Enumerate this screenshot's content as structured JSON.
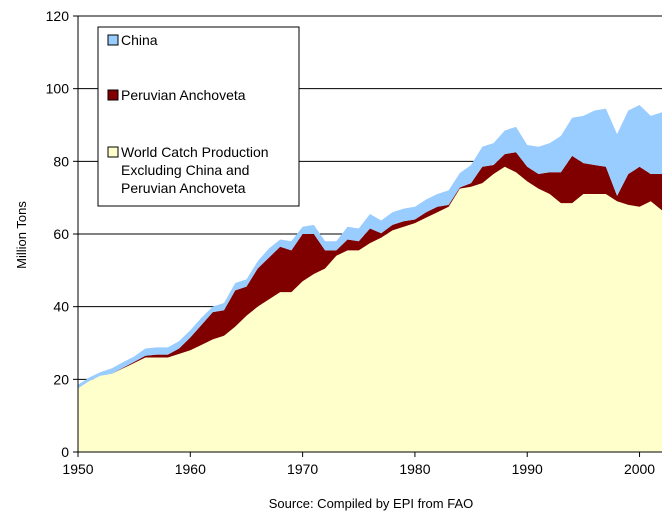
{
  "chart_data": {
    "type": "area",
    "stacked": true,
    "ylabel": "Million Tons",
    "xlabel": "Source: Compiled by EPI from FAO",
    "xlim": [
      1950,
      2002
    ],
    "ylim": [
      0,
      120
    ],
    "xticks": [
      1950,
      1960,
      1970,
      1980,
      1990,
      2000
    ],
    "yticks": [
      0,
      20,
      40,
      60,
      80,
      100,
      120
    ],
    "grid": "horizontal",
    "legend_position": "top-left",
    "x": [
      1950,
      1951,
      1952,
      1953,
      1954,
      1955,
      1956,
      1957,
      1958,
      1959,
      1960,
      1961,
      1962,
      1963,
      1964,
      1965,
      1966,
      1967,
      1968,
      1969,
      1970,
      1971,
      1972,
      1973,
      1974,
      1975,
      1976,
      1977,
      1978,
      1979,
      1980,
      1981,
      1982,
      1983,
      1984,
      1985,
      1986,
      1987,
      1988,
      1989,
      1990,
      1991,
      1992,
      1993,
      1994,
      1995,
      1996,
      1997,
      1998,
      1999,
      2000,
      2001,
      2002
    ],
    "series": [
      {
        "name": "World Catch Production Excluding China and Peruvian Anchoveta",
        "color": "#ffffcc",
        "values": [
          17.5,
          19.5,
          21,
          21.5,
          23,
          24.5,
          26,
          26,
          26,
          27,
          28,
          29.5,
          31,
          32,
          34.5,
          37.5,
          40,
          42,
          44,
          44,
          47,
          49,
          50.5,
          54,
          55.5,
          55.5,
          57.5,
          59,
          61,
          62,
          63,
          64.5,
          66,
          67.5,
          72.5,
          73,
          74,
          76.5,
          78.5,
          77,
          74.5,
          72.5,
          71,
          68.5,
          68.5,
          71,
          71,
          71,
          69,
          68,
          67.5,
          69,
          66.5
        ]
      },
      {
        "name": "Peruvian Anchoveta",
        "color": "#800000",
        "values": [
          0,
          0,
          0,
          0,
          0.2,
          0.3,
          0.5,
          0.8,
          0.8,
          1.5,
          3.5,
          5.5,
          7.5,
          7,
          10,
          8,
          10.5,
          11.5,
          12.5,
          11.5,
          13,
          11,
          5,
          1.5,
          3,
          2.5,
          4,
          1.2,
          1.5,
          1.5,
          1,
          1.5,
          1.5,
          0.5,
          0.3,
          1,
          4.5,
          2.5,
          3.5,
          5.5,
          4,
          4,
          6,
          8.5,
          13,
          8.5,
          8,
          7.5,
          1.5,
          8.5,
          11,
          7.5,
          10
        ]
      },
      {
        "name": "China",
        "color": "#99ccff",
        "values": [
          1,
          1,
          1,
          1.5,
          1.5,
          1.5,
          2,
          2,
          2,
          2,
          2,
          2,
          1.5,
          2,
          2,
          2,
          2,
          2.5,
          2,
          2.5,
          2,
          2.5,
          2.5,
          2.5,
          3.5,
          3.5,
          4,
          3.5,
          3.5,
          3.5,
          3.5,
          3.5,
          3.5,
          4,
          4,
          5,
          5.5,
          6,
          6.5,
          7,
          6,
          7.5,
          8,
          10,
          10.5,
          13,
          15,
          16,
          17,
          17.5,
          17,
          16,
          17
        ]
      }
    ]
  }
}
